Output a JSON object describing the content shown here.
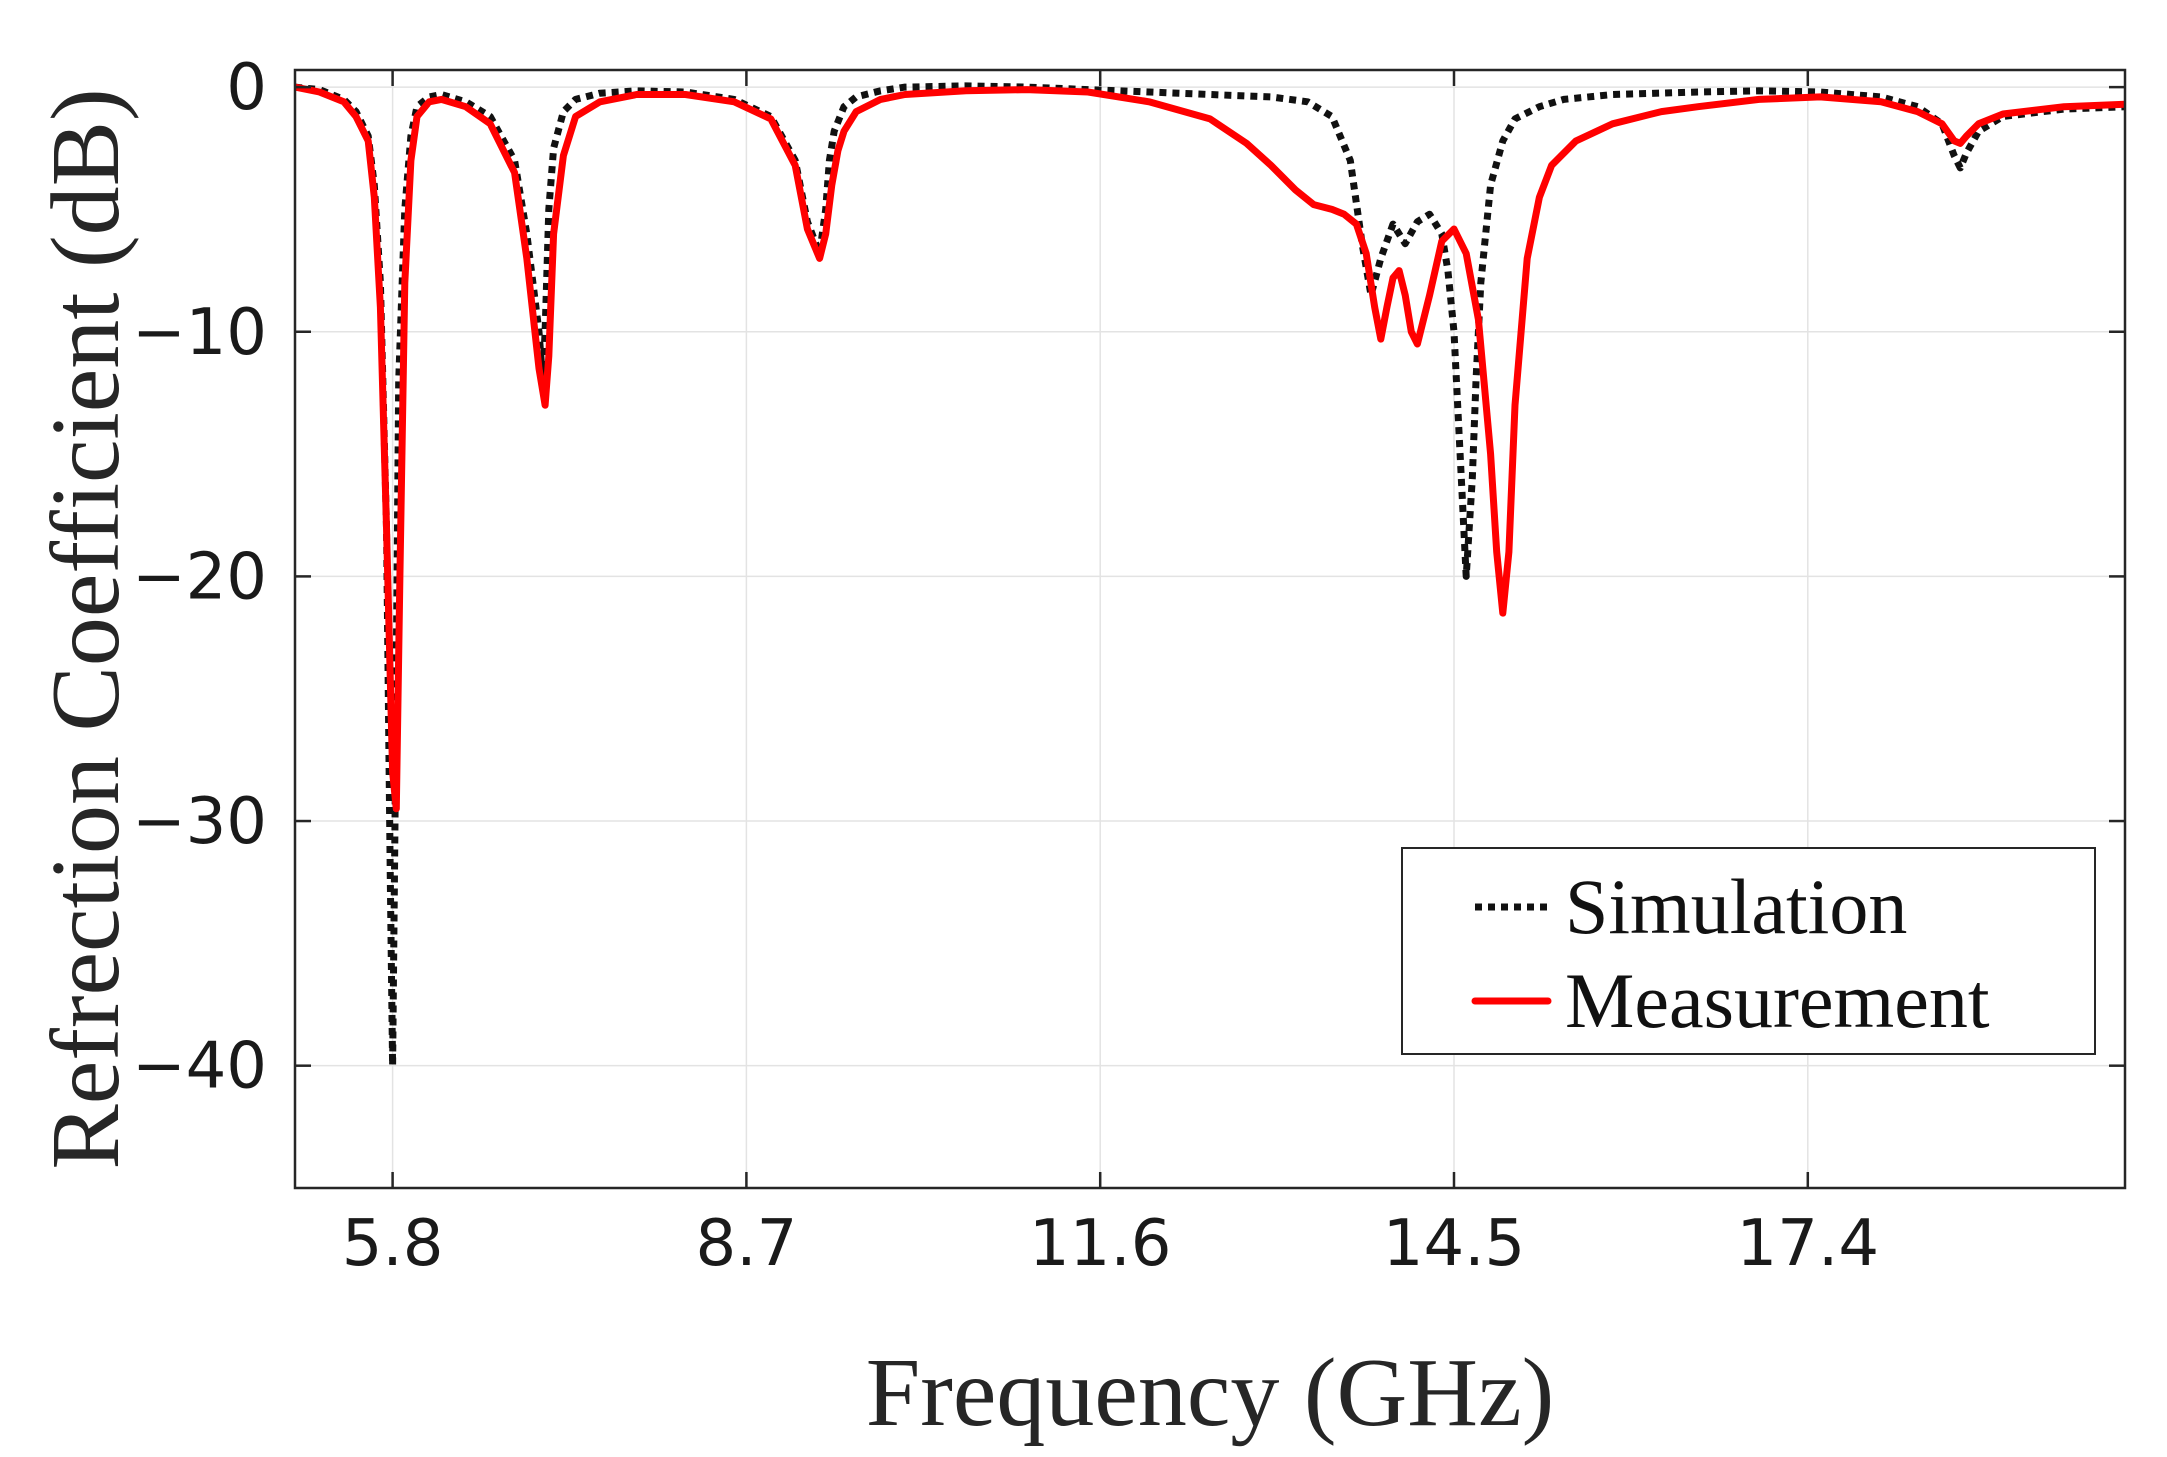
{
  "chart_data": {
    "type": "line",
    "title": "",
    "xlabel": "Frequency (GHz)",
    "ylabel": "Refrection Coefficient (dB)",
    "xlim": [
      5.0,
      20.0
    ],
    "ylim": [
      -45,
      0.7
    ],
    "xticks": [
      5.8,
      8.7,
      11.6,
      14.5,
      17.4
    ],
    "xtick_labels": [
      "5.8",
      "8.7",
      "11.6",
      "14.5",
      "17.4"
    ],
    "yticks": [
      0,
      -10,
      -20,
      -30,
      -40
    ],
    "ytick_labels": [
      "0",
      "−10",
      "−20",
      "−30",
      "−40"
    ],
    "grid": true,
    "legend_position": "bottom-right",
    "series": [
      {
        "name": "Simulation",
        "color": "#111111",
        "style": "dotted",
        "x": [
          5.0,
          5.2,
          5.4,
          5.5,
          5.6,
          5.65,
          5.7,
          5.75,
          5.78,
          5.8,
          5.82,
          5.85,
          5.9,
          5.95,
          6.0,
          6.1,
          6.2,
          6.4,
          6.6,
          6.8,
          6.9,
          7.0,
          7.03,
          7.05,
          7.08,
          7.12,
          7.2,
          7.3,
          7.5,
          7.8,
          8.2,
          8.6,
          8.9,
          9.1,
          9.2,
          9.3,
          9.35,
          9.38,
          9.42,
          9.5,
          9.6,
          9.8,
          10.0,
          10.5,
          11.0,
          11.5,
          12.0,
          12.5,
          13.0,
          13.3,
          13.5,
          13.65,
          13.75,
          13.82,
          13.9,
          14.0,
          14.1,
          14.2,
          14.3,
          14.4,
          14.45,
          14.5,
          14.55,
          14.6,
          14.65,
          14.68,
          14.72,
          14.8,
          14.9,
          15.0,
          15.2,
          15.4,
          15.8,
          16.5,
          17.0,
          17.5,
          18.0,
          18.3,
          18.5,
          18.6,
          18.65,
          18.7,
          18.8,
          19.0,
          19.5,
          20.0
        ],
        "values": [
          0,
          -0.1,
          -0.5,
          -1.0,
          -2.0,
          -4.0,
          -8.0,
          -18.0,
          -32.0,
          -40.0,
          -30.0,
          -12.0,
          -5.0,
          -2.0,
          -0.8,
          -0.4,
          -0.3,
          -0.6,
          -1.2,
          -3.0,
          -6.0,
          -10.0,
          -12.0,
          -10.0,
          -5.0,
          -2.5,
          -1.0,
          -0.5,
          -0.25,
          -0.15,
          -0.2,
          -0.5,
          -1.2,
          -3.0,
          -5.5,
          -6.8,
          -5.0,
          -3.0,
          -1.8,
          -0.8,
          -0.4,
          -0.15,
          0.0,
          0.05,
          0.0,
          -0.1,
          -0.2,
          -0.3,
          -0.4,
          -0.6,
          -1.2,
          -3.0,
          -6.5,
          -8.5,
          -7.0,
          -5.6,
          -6.4,
          -5.5,
          -5.2,
          -6.0,
          -7.5,
          -10.0,
          -15.0,
          -20.0,
          -16.0,
          -12.0,
          -8.0,
          -4.0,
          -2.2,
          -1.3,
          -0.8,
          -0.5,
          -0.3,
          -0.2,
          -0.15,
          -0.2,
          -0.4,
          -0.8,
          -1.5,
          -2.8,
          -3.3,
          -2.7,
          -1.8,
          -1.2,
          -0.9,
          -0.8
        ]
      },
      {
        "name": "Measurement",
        "color": "#ff0000",
        "style": "solid",
        "x": [
          5.0,
          5.2,
          5.4,
          5.5,
          5.6,
          5.65,
          5.7,
          5.75,
          5.8,
          5.83,
          5.86,
          5.9,
          5.95,
          6.0,
          6.1,
          6.2,
          6.4,
          6.6,
          6.8,
          6.9,
          7.0,
          7.05,
          7.08,
          7.12,
          7.2,
          7.3,
          7.5,
          7.8,
          8.2,
          8.6,
          8.9,
          9.1,
          9.2,
          9.3,
          9.35,
          9.4,
          9.45,
          9.5,
          9.6,
          9.8,
          10.0,
          10.5,
          11.0,
          11.5,
          12.0,
          12.5,
          12.8,
          13.0,
          13.2,
          13.35,
          13.5,
          13.6,
          13.7,
          13.78,
          13.85,
          13.9,
          13.95,
          14.0,
          14.05,
          14.1,
          14.15,
          14.2,
          14.3,
          14.4,
          14.5,
          14.6,
          14.7,
          14.8,
          14.85,
          14.9,
          14.95,
          15.0,
          15.1,
          15.2,
          15.3,
          15.5,
          15.8,
          16.2,
          16.5,
          17.0,
          17.5,
          18.0,
          18.3,
          18.5,
          18.6,
          18.65,
          18.7,
          18.8,
          19.0,
          19.5,
          20.0
        ],
        "values": [
          0,
          -0.2,
          -0.6,
          -1.2,
          -2.2,
          -4.5,
          -9.0,
          -18.0,
          -28.0,
          -29.5,
          -20.0,
          -8.0,
          -3.0,
          -1.2,
          -0.6,
          -0.5,
          -0.8,
          -1.5,
          -3.5,
          -7.0,
          -11.5,
          -13.0,
          -11.0,
          -6.0,
          -2.8,
          -1.2,
          -0.6,
          -0.3,
          -0.3,
          -0.6,
          -1.3,
          -3.2,
          -5.8,
          -7.0,
          -6.0,
          -4.0,
          -2.6,
          -1.8,
          -1.0,
          -0.5,
          -0.3,
          -0.15,
          -0.1,
          -0.2,
          -0.6,
          -1.3,
          -2.3,
          -3.2,
          -4.2,
          -4.8,
          -5.0,
          -5.2,
          -5.6,
          -6.8,
          -9.0,
          -10.3,
          -9.0,
          -7.8,
          -7.5,
          -8.5,
          -10.0,
          -10.5,
          -8.5,
          -6.3,
          -5.8,
          -6.8,
          -9.5,
          -15.0,
          -19.0,
          -21.5,
          -19.0,
          -13.0,
          -7.0,
          -4.5,
          -3.2,
          -2.2,
          -1.5,
          -1.0,
          -0.8,
          -0.5,
          -0.4,
          -0.6,
          -1.0,
          -1.5,
          -2.2,
          -2.3,
          -2.0,
          -1.5,
          -1.1,
          -0.8,
          -0.7
        ]
      }
    ]
  }
}
